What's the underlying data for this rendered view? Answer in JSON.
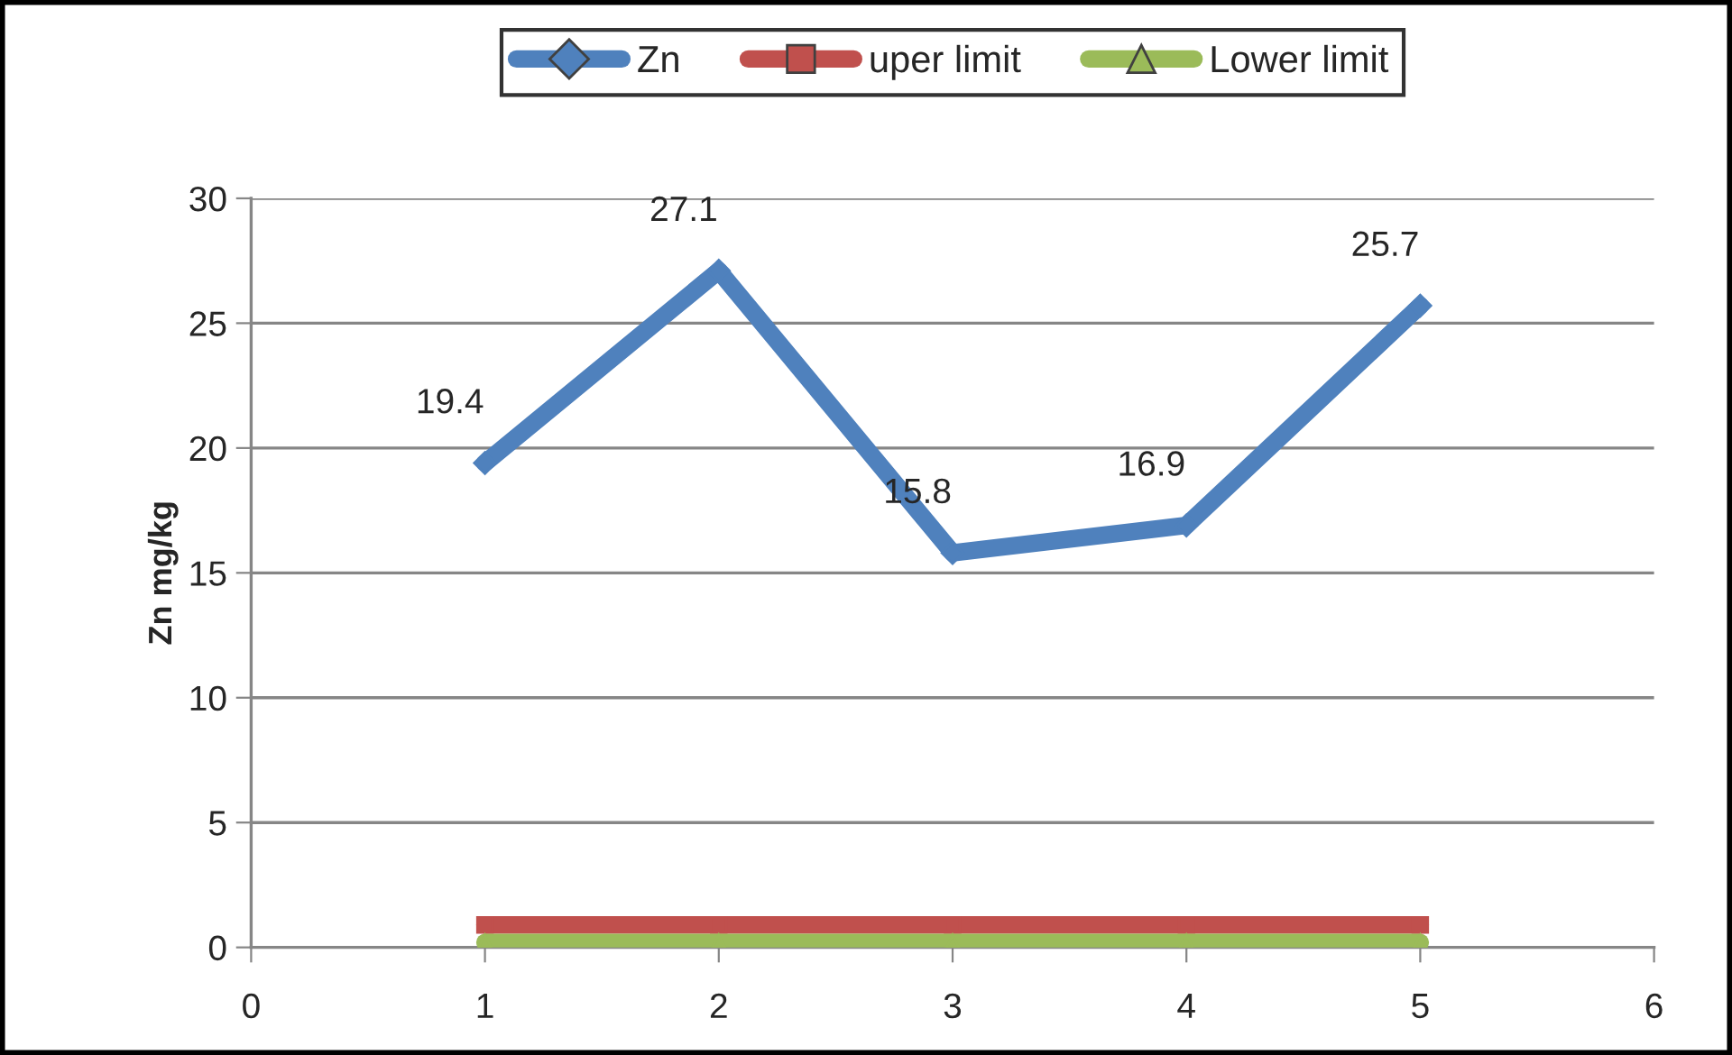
{
  "chart_data": {
    "type": "line",
    "ylabel": "Zn mg/kg",
    "x": [
      1,
      2,
      3,
      4,
      5
    ],
    "series": [
      {
        "name": "Zn",
        "color": "#4f81bd",
        "marker": "diamond",
        "values": [
          19.4,
          27.1,
          15.8,
          16.9,
          25.7
        ],
        "value_labels": [
          "19.4",
          "27.1",
          "15.8",
          "16.9",
          "25.7"
        ]
      },
      {
        "name": "uper limit",
        "color": "#c0504d",
        "marker": "square",
        "values": [
          0.9,
          0.9,
          0.9,
          0.9,
          0.9
        ]
      },
      {
        "name": "Lower limit",
        "color": "#9bbb59",
        "marker": "triangle",
        "values": [
          0.2,
          0.2,
          0.2,
          0.2,
          0.2
        ]
      }
    ],
    "xlim": [
      0,
      6
    ],
    "xticks": [
      0,
      1,
      2,
      3,
      4,
      5,
      6
    ],
    "ylim": [
      0,
      30
    ],
    "yticks": [
      0,
      5,
      10,
      15,
      20,
      25,
      30
    ],
    "grid": "y",
    "legend": "top"
  }
}
